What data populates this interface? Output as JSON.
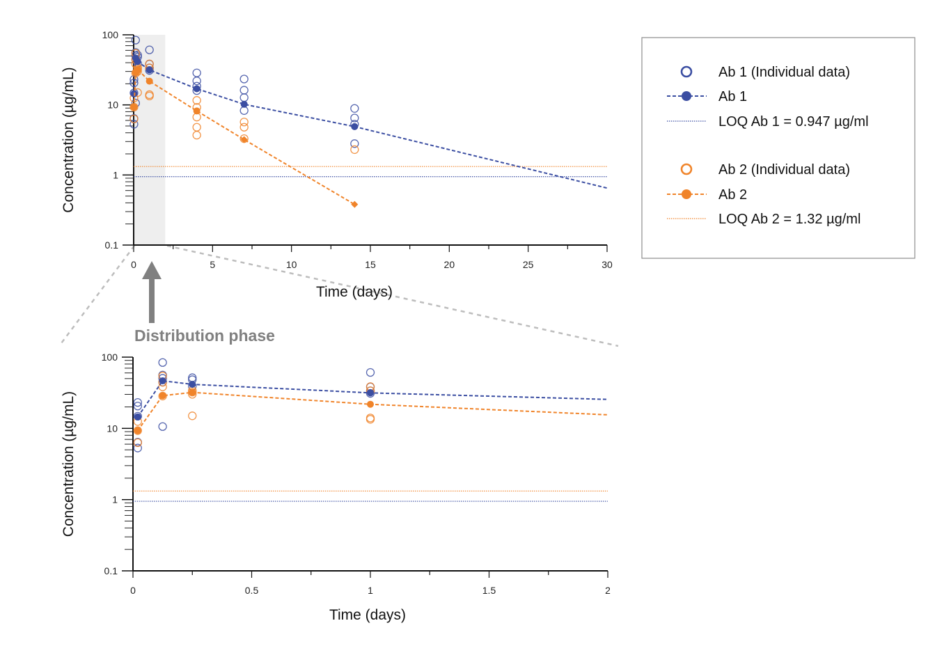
{
  "colors": {
    "ab1": "#3b4ea2",
    "ab2": "#f0842a",
    "shade": "#eeeeee",
    "zoom": "#bdbdbd",
    "arrow": "#808080"
  },
  "annotation": {
    "text": "Distribution phase"
  },
  "legend": {
    "entries": [
      {
        "key": "ab1_ind",
        "label": "Ab 1 (Individual data)",
        "color": "ab1",
        "style": "open-circle"
      },
      {
        "key": "ab1_mean",
        "label": "Ab 1",
        "color": "ab1",
        "style": "dashed-filled"
      },
      {
        "key": "ab1_loq",
        "label": "LOQ Ab 1 = 0.947 µg/ml",
        "color": "ab1",
        "style": "dotted"
      },
      {
        "key": "ab2_ind",
        "label": "Ab 2 (Individual data)",
        "color": "ab2",
        "style": "open-circle"
      },
      {
        "key": "ab2_mean",
        "label": "Ab 2",
        "color": "ab2",
        "style": "dashed-filled"
      },
      {
        "key": "ab2_loq",
        "label": "LOQ Ab 2 = 1.32 µg/ml",
        "color": "ab2",
        "style": "dotted"
      }
    ]
  },
  "chart_data": [
    {
      "id": "top",
      "type": "scatter",
      "title": "",
      "xlabel": "Time (days)",
      "ylabel": "Concentration (µg/mL)",
      "yscale": "log",
      "xlim": [
        0,
        30
      ],
      "ylim": [
        0.1,
        100
      ],
      "xticks": [
        0,
        5,
        10,
        15,
        20,
        25,
        30
      ],
      "yticks": [
        {
          "value": 100,
          "label": "100"
        },
        {
          "value": 10,
          "label": "10"
        },
        {
          "value": 1,
          "label": "1"
        },
        {
          "value": 0.1,
          "label": "0.1"
        }
      ],
      "shaded_x_range": [
        0,
        2
      ],
      "loq": {
        "ab1": 0.947,
        "ab2": 1.32
      },
      "series": [
        {
          "name": "Ab 1 (Individual data)",
          "color": "ab1",
          "kind": "individual",
          "points": [
            [
              0.02,
              5.3
            ],
            [
              0.02,
              6.4
            ],
            [
              0.02,
              14.8
            ],
            [
              0.02,
              20.6
            ],
            [
              0.02,
              23.1
            ],
            [
              0.125,
              10.6
            ],
            [
              0.125,
              44.7
            ],
            [
              0.125,
              50.4
            ],
            [
              0.125,
              56
            ],
            [
              0.125,
              84
            ],
            [
              0.25,
              39
            ],
            [
              0.25,
              48.2
            ],
            [
              0.25,
              51.4
            ],
            [
              1,
              31
            ],
            [
              1,
              33.7
            ],
            [
              1,
              38.2
            ],
            [
              1,
              61
            ],
            [
              4,
              16
            ],
            [
              4,
              18.5
            ],
            [
              4,
              22
            ],
            [
              4,
              28.6
            ],
            [
              7,
              8.3
            ],
            [
              7,
              12.7
            ],
            [
              7,
              16.2
            ],
            [
              7,
              23.4
            ],
            [
              14,
              2.8
            ],
            [
              14,
              5.3
            ],
            [
              14,
              6.5
            ],
            [
              14,
              8.9
            ]
          ]
        },
        {
          "name": "Ab 2 (Individual data)",
          "color": "ab2",
          "kind": "individual",
          "points": [
            [
              0.02,
              6.3
            ],
            [
              0.02,
              9.3
            ],
            [
              0.02,
              12.5
            ],
            [
              0.125,
              28.4
            ],
            [
              0.125,
              38.3
            ],
            [
              0.125,
              44.3
            ],
            [
              0.125,
              54.4
            ],
            [
              0.25,
              15
            ],
            [
              0.25,
              30.1
            ],
            [
              0.25,
              32.3
            ],
            [
              0.25,
              34.1
            ],
            [
              1,
              13.4
            ],
            [
              1,
              14
            ],
            [
              1,
              33.7
            ],
            [
              1,
              38.5
            ],
            [
              4,
              3.7
            ],
            [
              4,
              4.8
            ],
            [
              4,
              6.7
            ],
            [
              4,
              9.2
            ],
            [
              4,
              11.6
            ],
            [
              7,
              3.3
            ],
            [
              7,
              4.8
            ],
            [
              7,
              5.7
            ],
            [
              14,
              2.3
            ]
          ]
        },
        {
          "name": "Ab 1",
          "color": "ab1",
          "kind": "mean",
          "points": [
            [
              0.02,
              14.5
            ],
            [
              0.125,
              46.5
            ],
            [
              0.25,
              41.5
            ],
            [
              1,
              31.5
            ],
            [
              4,
              17
            ],
            [
              7,
              10.2
            ],
            [
              14,
              4.9
            ],
            [
              30,
              0.65
            ]
          ]
        },
        {
          "name": "Ab 2",
          "color": "ab2",
          "kind": "mean",
          "points": [
            [
              0.02,
              9.3
            ],
            [
              0.125,
              28.8
            ],
            [
              0.25,
              32
            ],
            [
              1,
              21.8
            ],
            [
              4,
              8.2
            ],
            [
              7,
              3.2
            ],
            [
              14,
              0.38
            ]
          ]
        }
      ]
    },
    {
      "id": "bottom",
      "type": "scatter",
      "title": "",
      "xlabel": "Time (days)",
      "ylabel": "Concentration (µg/mL)",
      "yscale": "log",
      "xlim": [
        0,
        2
      ],
      "ylim": [
        0.1,
        100
      ],
      "xticks": [
        0,
        0.5,
        1,
        1.5,
        2
      ],
      "yticks": [
        {
          "value": 100,
          "label": "100"
        },
        {
          "value": 10,
          "label": "10"
        },
        {
          "value": 1,
          "label": "1"
        },
        {
          "value": 0.1,
          "label": "0.1"
        }
      ],
      "loq": {
        "ab1": 0.947,
        "ab2": 1.32
      },
      "series": [
        {
          "name": "Ab 1 (Individual data)",
          "color": "ab1",
          "kind": "individual",
          "points": [
            [
              0.02,
              5.3
            ],
            [
              0.02,
              6.4
            ],
            [
              0.02,
              14.8
            ],
            [
              0.02,
              20.6
            ],
            [
              0.02,
              23.1
            ],
            [
              0.125,
              10.6
            ],
            [
              0.125,
              44.7
            ],
            [
              0.125,
              50.4
            ],
            [
              0.125,
              56
            ],
            [
              0.125,
              84
            ],
            [
              0.25,
              39
            ],
            [
              0.25,
              48.2
            ],
            [
              0.25,
              51.4
            ],
            [
              1,
              31
            ],
            [
              1,
              33.7
            ],
            [
              1,
              38.2
            ],
            [
              1,
              61
            ]
          ]
        },
        {
          "name": "Ab 2 (Individual data)",
          "color": "ab2",
          "kind": "individual",
          "points": [
            [
              0.02,
              6.3
            ],
            [
              0.02,
              9.3
            ],
            [
              0.02,
              12.5
            ],
            [
              0.125,
              28.4
            ],
            [
              0.125,
              38.3
            ],
            [
              0.125,
              44.3
            ],
            [
              0.125,
              54.4
            ],
            [
              0.25,
              15
            ],
            [
              0.25,
              30.1
            ],
            [
              0.25,
              32.3
            ],
            [
              0.25,
              34.1
            ],
            [
              1,
              13.4
            ],
            [
              1,
              14
            ],
            [
              1,
              33.7
            ],
            [
              1,
              38.5
            ]
          ]
        },
        {
          "name": "Ab 1",
          "color": "ab1",
          "kind": "mean",
          "points": [
            [
              0.02,
              14.5
            ],
            [
              0.125,
              46.5
            ],
            [
              0.25,
              41.5
            ],
            [
              1,
              31.5
            ],
            [
              2,
              25.5
            ]
          ]
        },
        {
          "name": "Ab 2",
          "color": "ab2",
          "kind": "mean",
          "points": [
            [
              0.02,
              9.3
            ],
            [
              0.125,
              28.8
            ],
            [
              0.25,
              32
            ],
            [
              1,
              21.8
            ],
            [
              2,
              15.5
            ]
          ]
        }
      ]
    }
  ]
}
